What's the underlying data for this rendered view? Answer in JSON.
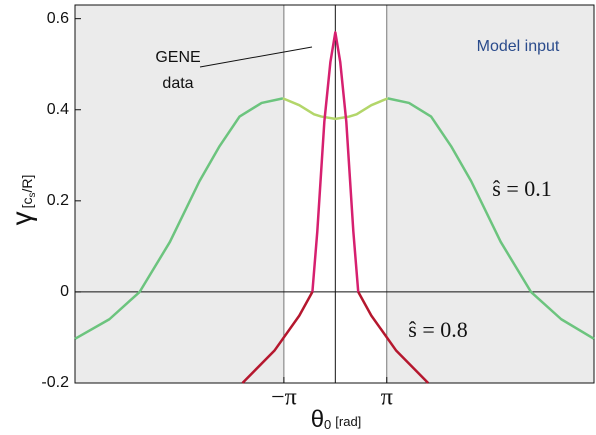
{
  "chart_data": {
    "type": "line",
    "ylabel": {
      "symbol": "γ",
      "unit_base": "[c",
      "unit_sub": "s",
      "unit_rest": "/R]"
    },
    "xlabel": {
      "symbol": "θ",
      "subscript": "0",
      "unit": "[rad]"
    },
    "annotations": {
      "gene_line1": "GENE",
      "gene_line2": "data",
      "model": "Model input",
      "s01": "ŝ = 0.1",
      "s08": "ŝ = 0.8"
    },
    "xlim": [
      -15.9,
      15.8
    ],
    "ylim": [
      -0.2,
      0.63
    ],
    "xticks": [
      {
        "value": -3.14159,
        "label": "−π"
      },
      {
        "value": 3.14159,
        "label": "π"
      }
    ],
    "yticks": [
      -0.2,
      0,
      0.2,
      0.4,
      0.6
    ],
    "shade_outside": [
      -3.14159,
      3.14159
    ],
    "series": [
      {
        "color": "#6cc47e",
        "x": [
          -15.9,
          -13.8,
          -11.95,
          -10.1,
          -8.3,
          -7.07,
          -5.85,
          -4.5,
          -3.2
        ],
        "values": [
          -0.103,
          -0.06,
          0,
          0.11,
          0.243,
          0.32,
          0.385,
          0.415,
          0.425
        ]
      },
      {
        "color": "#b3d66a",
        "x": [
          -3.2,
          -2.2,
          -1.3,
          -0.85,
          0,
          0.85,
          1.3,
          2.2,
          3.2
        ],
        "values": [
          0.425,
          0.41,
          0.39,
          0.385,
          0.38,
          0.385,
          0.39,
          0.41,
          0.425
        ]
      },
      {
        "color": "#6cc47e",
        "x": [
          3.2,
          4.5,
          5.85,
          7.07,
          8.3,
          10.1,
          11.95,
          13.8,
          15.8
        ],
        "values": [
          0.425,
          0.415,
          0.385,
          0.32,
          0.243,
          0.11,
          0,
          -0.06,
          -0.103
        ]
      },
      {
        "color": "#d6206f",
        "x": [
          -1.4,
          -1.1,
          -0.67,
          -0.3,
          0,
          0.3,
          0.67,
          1.1,
          1.4
        ],
        "values": [
          0,
          0.133,
          0.374,
          0.505,
          0.57,
          0.505,
          0.374,
          0.133,
          0
        ]
      },
      {
        "color": "#b5172e",
        "x": [
          -5.67,
          -3.72,
          -2.2,
          -1.4
        ],
        "values": [
          -0.2,
          -0.129,
          -0.052,
          0
        ]
      },
      {
        "color": "#b5172e",
        "x": [
          1.4,
          2.2,
          3.72,
          5.67
        ],
        "values": [
          0,
          -0.052,
          -0.129,
          -0.2
        ]
      }
    ]
  }
}
